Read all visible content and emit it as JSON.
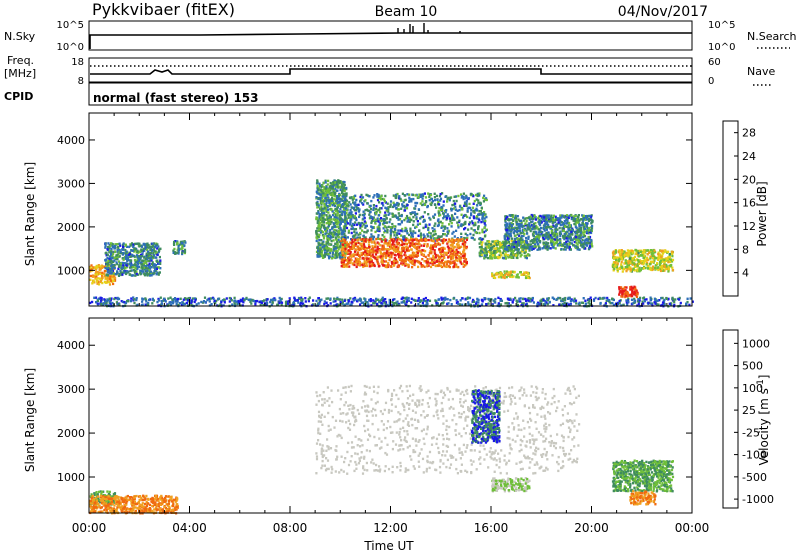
{
  "header": {
    "station": "Pykkvibaer (fitEX)",
    "beam": "Beam 10",
    "date": "04/Nov/2017"
  },
  "sky_panel": {
    "left_label": "N.Sky",
    "left_ticks": [
      "10^5",
      "10^0"
    ],
    "right_label": "N.Search",
    "right_ticks": [
      "10^5",
      "10^0"
    ]
  },
  "freq_panel": {
    "left_label_1": "Freq.",
    "left_label_2": "[MHz]",
    "left_ticks": [
      "18",
      "8"
    ],
    "right_label": "Nave",
    "right_ticks": [
      "60",
      "0"
    ]
  },
  "cpid_panel": {
    "label": "CPID",
    "text": "normal (fast stereo) 153"
  },
  "colors": {
    "power": [
      "#1a1ae6",
      "#2d6fb8",
      "#3f8c5e",
      "#6fbf3a",
      "#e6d21a",
      "#f0a020",
      "#f06a10",
      "#e61a1a"
    ],
    "velocity": [
      "#e61a1a",
      "#f06a10",
      "#f0a020",
      "#c8c8c0",
      "#c8c8c0",
      "#6fbf3a",
      "#3f8c5e",
      "#1a1ae6"
    ]
  },
  "chart_data": [
    {
      "type": "heatmap",
      "title": "",
      "xlabel": "Time UT",
      "ylabel": "Slant Range [km]",
      "xlim": [
        "00:00",
        "24:00"
      ],
      "ylim": [
        180,
        4620
      ],
      "x_ticks": [
        "00:00",
        "04:00",
        "08:00",
        "12:00",
        "16:00",
        "20:00",
        "00:00"
      ],
      "y_ticks": [
        1000,
        2000,
        3000,
        4000
      ],
      "colorbar": {
        "label": "Power [dB]",
        "ticks": [
          4,
          8,
          12,
          16,
          20,
          24,
          28
        ],
        "range": [
          0,
          30
        ]
      },
      "echo_regions": [
        {
          "start_h": 0.0,
          "end_h": 1.0,
          "range_km": [
            700,
            1150
          ],
          "level": 20
        },
        {
          "start_h": 0.6,
          "end_h": 2.8,
          "range_km": [
            900,
            1650
          ],
          "level": 8
        },
        {
          "start_h": 3.3,
          "end_h": 3.8,
          "range_km": [
            1400,
            1700
          ],
          "level": 8
        },
        {
          "start_h": 9.0,
          "end_h": 10.2,
          "range_km": [
            1300,
            3100
          ],
          "level": 10
        },
        {
          "start_h": 10.0,
          "end_h": 15.8,
          "range_km": [
            1700,
            2800
          ],
          "level": 8
        },
        {
          "start_h": 10.0,
          "end_h": 15.0,
          "range_km": [
            1100,
            1750
          ],
          "level": 24
        },
        {
          "start_h": 15.5,
          "end_h": 17.5,
          "range_km": [
            1300,
            1700
          ],
          "level": 12
        },
        {
          "start_h": 16.0,
          "end_h": 17.5,
          "range_km": [
            850,
            1000
          ],
          "level": 16
        },
        {
          "start_h": 16.5,
          "end_h": 20.0,
          "range_km": [
            1500,
            2300
          ],
          "level": 8
        },
        {
          "start_h": 20.8,
          "end_h": 23.2,
          "range_km": [
            1000,
            1500
          ],
          "level": 16
        },
        {
          "start_h": 21.0,
          "end_h": 21.8,
          "range_km": [
            400,
            650
          ],
          "level": 28
        },
        {
          "start_h": 0.0,
          "end_h": 24.0,
          "range_km": [
            200,
            400
          ],
          "level": 6
        }
      ]
    },
    {
      "type": "heatmap",
      "title": "",
      "xlabel": "Time UT",
      "ylabel": "Slant Range [km]",
      "xlim": [
        "00:00",
        "24:00"
      ],
      "ylim": [
        180,
        4620
      ],
      "x_ticks": [
        "00:00",
        "04:00",
        "08:00",
        "12:00",
        "16:00",
        "20:00",
        "00:00"
      ],
      "y_ticks": [
        1000,
        2000,
        3000,
        4000
      ],
      "colorbar": {
        "label": "Velocity [m s^-1]",
        "ticks": [
          1000,
          500,
          100,
          25,
          -25,
          -100,
          -500,
          -1000
        ]
      },
      "echo_regions": [
        {
          "start_h": 0.0,
          "end_h": 1.0,
          "range_km": [
            400,
            700
          ],
          "level": 500
        },
        {
          "start_h": 0.0,
          "end_h": 3.5,
          "range_km": [
            200,
            600
          ],
          "level": -100
        },
        {
          "start_h": 9.0,
          "end_h": 19.5,
          "range_km": [
            1100,
            3100
          ],
          "level": 0
        },
        {
          "start_h": 15.2,
          "end_h": 16.3,
          "range_km": [
            1800,
            3000
          ],
          "level": 1000
        },
        {
          "start_h": 16.0,
          "end_h": 17.5,
          "range_km": [
            700,
            1000
          ],
          "level": 100
        },
        {
          "start_h": 20.8,
          "end_h": 23.2,
          "range_km": [
            700,
            1400
          ],
          "level": 500
        },
        {
          "start_h": 21.5,
          "end_h": 22.5,
          "range_km": [
            400,
            700
          ],
          "level": -100
        }
      ]
    }
  ]
}
